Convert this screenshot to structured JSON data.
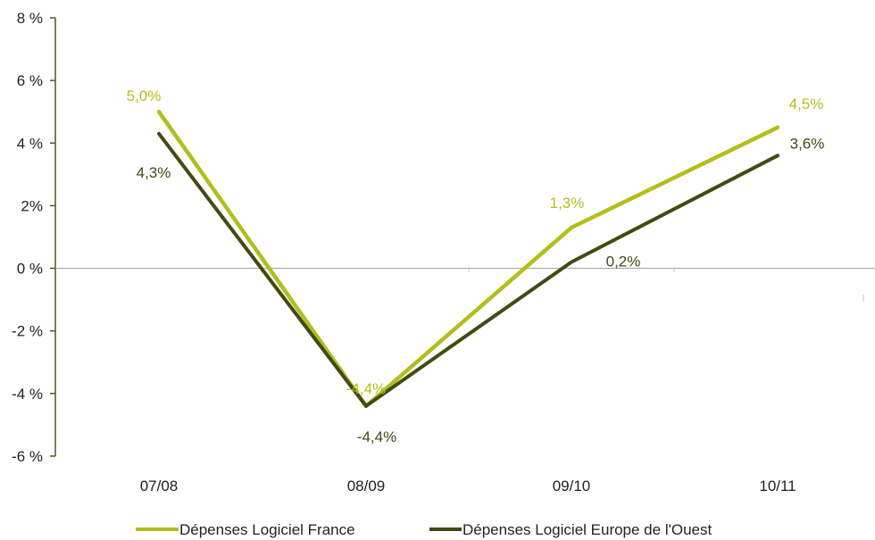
{
  "chart_data": {
    "type": "line",
    "categories": [
      "07/08",
      "08/09",
      "09/10",
      "10/11"
    ],
    "y_ticks": [
      {
        "value": 8,
        "label": "8 %"
      },
      {
        "value": 6,
        "label": "6 %"
      },
      {
        "value": 4,
        "label": "4 %"
      },
      {
        "value": 2,
        "label": "2%"
      },
      {
        "value": 0,
        "label": "0 %"
      },
      {
        "value": -2,
        "label": "-2 %"
      },
      {
        "value": -4,
        "label": "-4 %"
      },
      {
        "value": -6,
        "label": "-6 %"
      }
    ],
    "ylim": [
      -6,
      8
    ],
    "grid": false,
    "legend_position": "bottom",
    "series": [
      {
        "name": "Dépenses Logiciel France",
        "color": "#b3be1e",
        "values": [
          5.0,
          -4.4,
          1.3,
          4.5
        ],
        "labels": [
          "5,0%",
          "-4,4%",
          "1,3%",
          "4,5%"
        ]
      },
      {
        "name": "Dépenses Logiciel Europe de l'Ouest",
        "color": "#414a12",
        "values": [
          4.3,
          -4.4,
          0.2,
          3.6
        ],
        "labels": [
          "4,3%",
          "-4,4%",
          "0,2%",
          "3,6%"
        ]
      }
    ]
  }
}
